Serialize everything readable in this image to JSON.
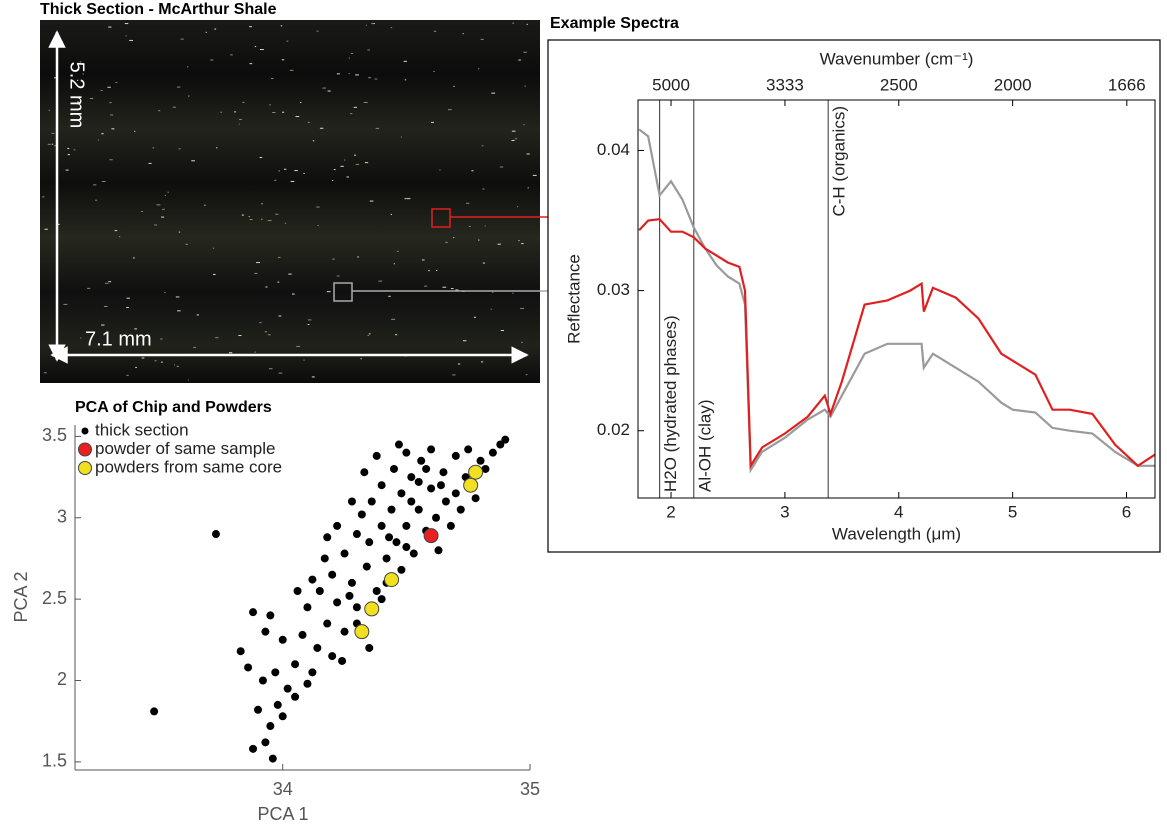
{
  "image_panel": {
    "title": "Thick Section - McArthur Shale",
    "height_label": "5.2 mm",
    "width_label": "7.1 mm"
  },
  "chart_data": [
    {
      "type": "line",
      "title": "Example Spectra",
      "x_label": "Wavelength (μm)",
      "y_label": "Reflectance",
      "x2_label": "Wavenumber (cm⁻¹)",
      "x": [
        1.72,
        1.8,
        1.9,
        2.0,
        2.1,
        2.2,
        2.3,
        2.4,
        2.5,
        2.6,
        2.65,
        2.7,
        2.8,
        3.0,
        3.2,
        3.35,
        3.4,
        3.5,
        3.7,
        3.9,
        4.1,
        4.2,
        4.22,
        4.3,
        4.5,
        4.7,
        4.9,
        5.0,
        5.2,
        5.35,
        5.5,
        5.7,
        5.9,
        6.1,
        6.25
      ],
      "series": [
        {
          "color": "#9a9a9a",
          "values": [
            0.0415,
            0.041,
            0.0368,
            0.0378,
            0.0365,
            0.0345,
            0.033,
            0.0318,
            0.031,
            0.0305,
            0.029,
            0.0172,
            0.0185,
            0.0195,
            0.0208,
            0.0215,
            0.021,
            0.0225,
            0.0255,
            0.0262,
            0.0262,
            0.0262,
            0.0245,
            0.0255,
            0.0245,
            0.0235,
            0.022,
            0.0215,
            0.0213,
            0.0202,
            0.02,
            0.0198,
            0.0185,
            0.0175,
            0.0175
          ]
        },
        {
          "color": "#e02020",
          "values": [
            0.0343,
            0.035,
            0.0351,
            0.0342,
            0.0342,
            0.0338,
            0.033,
            0.0325,
            0.032,
            0.0317,
            0.03,
            0.0175,
            0.0188,
            0.0198,
            0.021,
            0.0225,
            0.0212,
            0.0235,
            0.029,
            0.0293,
            0.03,
            0.0305,
            0.0285,
            0.0302,
            0.0295,
            0.028,
            0.0255,
            0.025,
            0.024,
            0.0215,
            0.0215,
            0.0212,
            0.019,
            0.0175,
            0.0183
          ]
        }
      ],
      "xlim": [
        1.71,
        6.25
      ],
      "xticks": [
        2,
        3,
        4,
        5,
        6
      ],
      "ylim": [
        0.0152,
        0.0436
      ],
      "yticks": [
        0.02,
        0.03,
        0.04
      ],
      "x2ticks": [
        5000,
        3333,
        2500,
        2000,
        1666
      ],
      "vlines": [
        {
          "x": 1.9,
          "label": "H2O (hydrated phases)"
        },
        {
          "x": 2.2,
          "label": "Al-OH (clay)"
        },
        {
          "x": 3.38,
          "label": "C-H (organics)"
        }
      ]
    },
    {
      "type": "scatter",
      "title": "PCA of Chip and Powders",
      "x_label": "PCA 1",
      "y_label": "PCA 2",
      "xlim": [
        33.16,
        35
      ],
      "xticks": [
        34,
        35
      ],
      "ylim": [
        1.45,
        3.57
      ],
      "yticks": [
        1.5,
        2,
        2.5,
        3,
        3.5
      ],
      "series": [
        {
          "name": "thick section",
          "color": "#000000",
          "x": [
            33.88,
            33.93,
            33.96,
            33.95,
            33.9,
            33.98,
            34.0,
            33.92,
            33.97,
            34.02,
            33.83,
            33.86,
            33.88,
            33.95,
            34.05,
            34.05,
            34.08,
            34.0,
            33.93,
            34.1,
            34.12,
            34.14,
            34.15,
            34.18,
            34.2,
            34.22,
            34.17,
            34.25,
            34.25,
            34.28,
            34.3,
            34.3,
            34.32,
            34.34,
            34.35,
            34.36,
            34.38,
            34.4,
            34.4,
            34.42,
            34.44,
            34.45,
            34.46,
            34.48,
            34.48,
            34.5,
            34.5,
            34.52,
            34.53,
            34.55,
            34.56,
            34.58,
            34.6,
            34.6,
            34.62,
            34.63,
            34.65,
            34.66,
            34.68,
            34.7,
            34.7,
            34.72,
            34.74,
            34.75,
            34.78,
            34.8,
            34.82,
            34.85,
            34.88,
            34.9,
            34.22,
            34.28,
            34.33,
            34.38,
            34.42,
            34.47,
            34.55,
            34.35,
            34.24,
            34.12,
            34.06,
            34.18,
            34.27,
            34.43,
            34.52,
            34.58,
            34.64,
            34.1,
            34.2,
            34.3,
            34.4,
            34.5,
            33.73,
            33.48
          ],
          "y": [
            1.58,
            1.62,
            1.52,
            1.72,
            1.82,
            1.85,
            1.78,
            2.0,
            2.05,
            1.95,
            2.18,
            2.08,
            2.42,
            2.4,
            2.1,
            1.9,
            2.28,
            2.25,
            2.3,
            2.45,
            2.05,
            2.2,
            2.55,
            2.35,
            2.65,
            2.48,
            2.75,
            2.3,
            2.78,
            2.6,
            2.9,
            2.45,
            3.02,
            2.7,
            2.85,
            3.1,
            2.55,
            2.95,
            3.2,
            2.75,
            3.05,
            3.3,
            2.85,
            2.68,
            3.15,
            3.4,
            2.95,
            3.25,
            2.78,
            3.05,
            3.35,
            2.92,
            3.18,
            3.42,
            3.0,
            2.8,
            3.28,
            3.1,
            2.95,
            3.38,
            3.15,
            3.05,
            3.25,
            3.42,
            3.12,
            3.35,
            3.3,
            3.4,
            3.45,
            3.48,
            2.95,
            3.1,
            3.28,
            3.38,
            2.6,
            3.45,
            3.22,
            2.2,
            2.12,
            2.62,
            2.55,
            2.88,
            2.52,
            2.88,
            3.1,
            3.3,
            3.2,
            1.98,
            2.15,
            2.35,
            2.5,
            2.82,
            2.9,
            1.81
          ]
        },
        {
          "name": "powder of same sample",
          "color": "#e82020",
          "x": [
            34.6
          ],
          "y": [
            2.89
          ]
        },
        {
          "name": "powders from same core",
          "color": "#f0e020",
          "x": [
            34.78,
            34.76,
            34.44,
            34.36,
            34.32
          ],
          "y": [
            3.28,
            3.2,
            2.62,
            2.44,
            2.3
          ]
        }
      ]
    }
  ]
}
